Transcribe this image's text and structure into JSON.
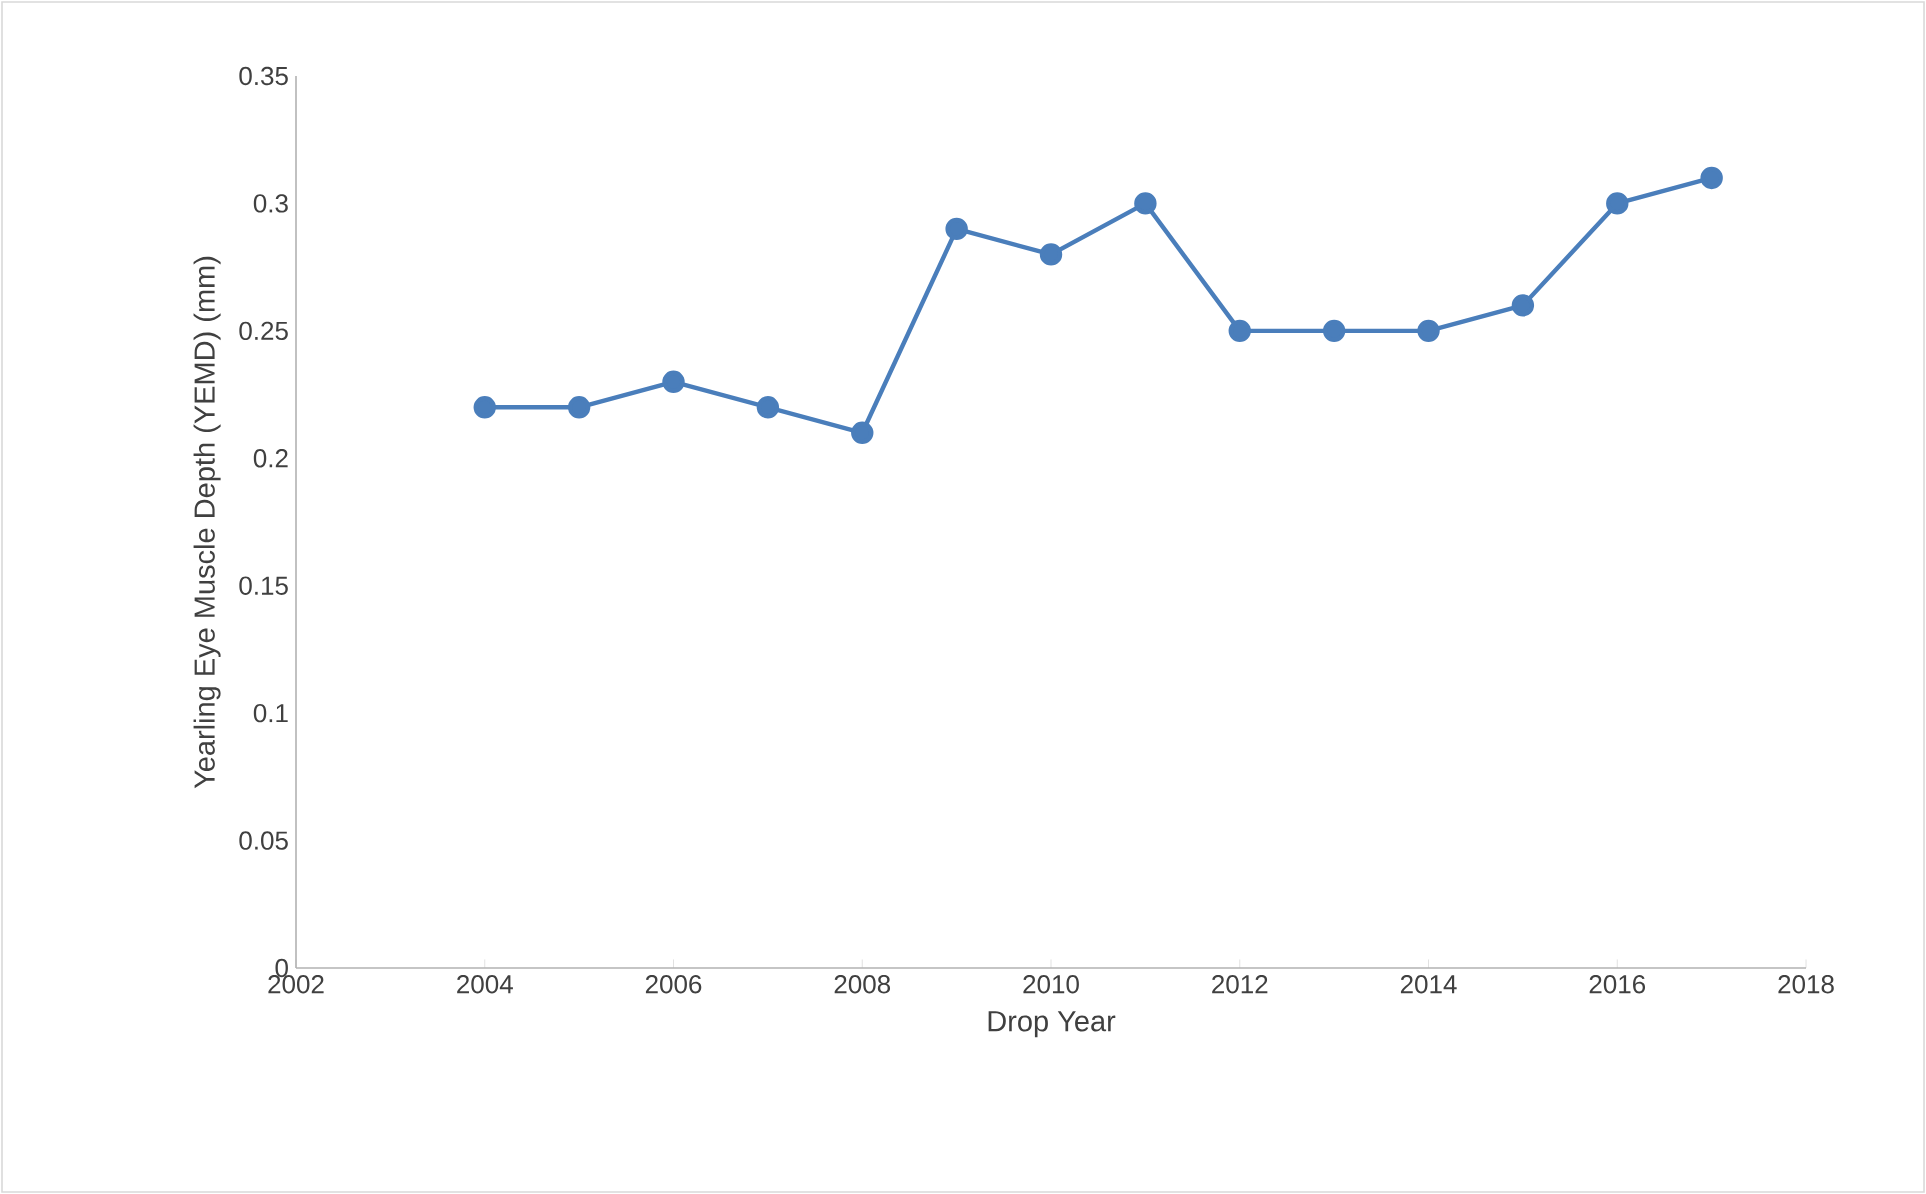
{
  "chart_data": {
    "type": "line",
    "xlabel": "Drop Year",
    "ylabel": "Yearling Eye Muscle Depth (YEMD) (mm)",
    "x": [
      2004,
      2005,
      2006,
      2007,
      2008,
      2009,
      2010,
      2011,
      2012,
      2013,
      2014,
      2015,
      2016,
      2017
    ],
    "series": [
      {
        "color": "#4a7ebb",
        "values": [
          0.22,
          0.22,
          0.23,
          0.22,
          0.21,
          0.29,
          0.28,
          0.3,
          0.25,
          0.25,
          0.25,
          0.26,
          0.3,
          0.31
        ]
      }
    ],
    "xlim": [
      2002,
      2018
    ],
    "ylim": [
      0,
      0.35
    ],
    "xticks": [
      2002,
      2004,
      2006,
      2008,
      2010,
      2012,
      2014,
      2016,
      2018
    ],
    "yticks": [
      0,
      0.05,
      0.1,
      0.15,
      0.2,
      0.25,
      0.3,
      0.35
    ],
    "marker": "circle",
    "line_style": "solid",
    "grid": false
  }
}
